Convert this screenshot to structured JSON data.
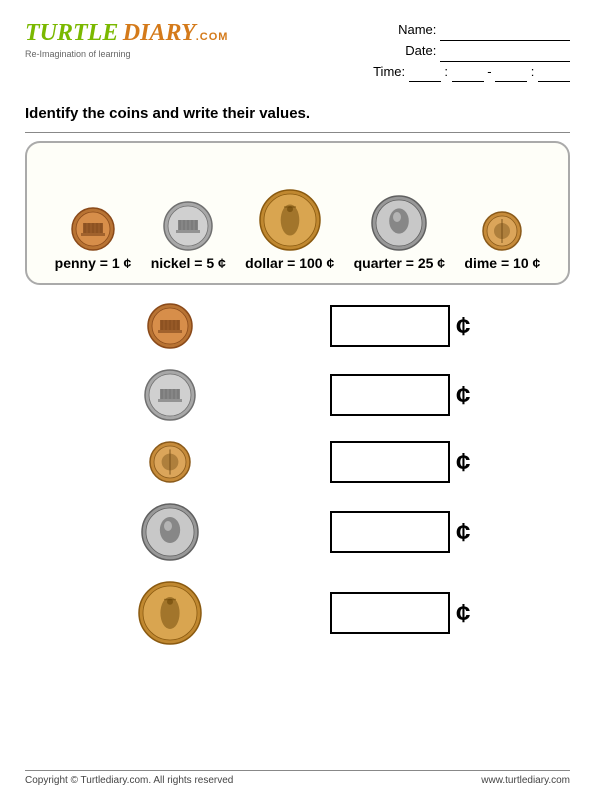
{
  "header": {
    "logo_part1": "TURTLE",
    "logo_part2": "DIARY",
    "logo_domain": ".COM",
    "tagline": "Re-Imagination of learning",
    "name_label": "Name:",
    "date_label": "Date:",
    "time_label": "Time:"
  },
  "instruction": "Identify the coins and write their values.",
  "reference": {
    "coins": [
      {
        "name": "penny",
        "value": "1",
        "type": "penny",
        "size": 44
      },
      {
        "name": "nickel",
        "value": "5",
        "type": "nickel",
        "size": 50
      },
      {
        "name": "dollar",
        "value": "100",
        "type": "dollar",
        "size": 62
      },
      {
        "name": "quarter",
        "value": "25",
        "type": "quarter",
        "size": 56
      },
      {
        "name": "dime",
        "value": "10",
        "type": "dime",
        "size": 40
      }
    ]
  },
  "problems": [
    {
      "type": "penny",
      "size": 46
    },
    {
      "type": "nickel",
      "size": 52
    },
    {
      "type": "dime",
      "size": 42
    },
    {
      "type": "quarter",
      "size": 58
    },
    {
      "type": "dollar",
      "size": 64
    }
  ],
  "cent_symbol": "¢",
  "footer": {
    "copyright": "Copyright © Turtlediary.com. All rights reserved",
    "url": "www.turtlediary.com"
  },
  "coin_styles": {
    "penny": {
      "outer": "#b87333",
      "inner": "#d78e4a",
      "rim": "#8a4a1a",
      "detail": "#6b3510"
    },
    "nickel": {
      "outer": "#a8a8a8",
      "inner": "#d0d0d0",
      "rim": "#707070",
      "detail": "#555555"
    },
    "dime": {
      "outer": "#c68b3a",
      "inner": "#dba55a",
      "rim": "#8a5a1a",
      "detail": "#6b4510"
    },
    "quarter": {
      "outer": "#989898",
      "inner": "#c8c8c8",
      "rim": "#606060",
      "detail": "#454545"
    },
    "dollar": {
      "outer": "#c08830",
      "inner": "#d9a550",
      "rim": "#8a5a10",
      "detail": "#6b4505"
    }
  }
}
